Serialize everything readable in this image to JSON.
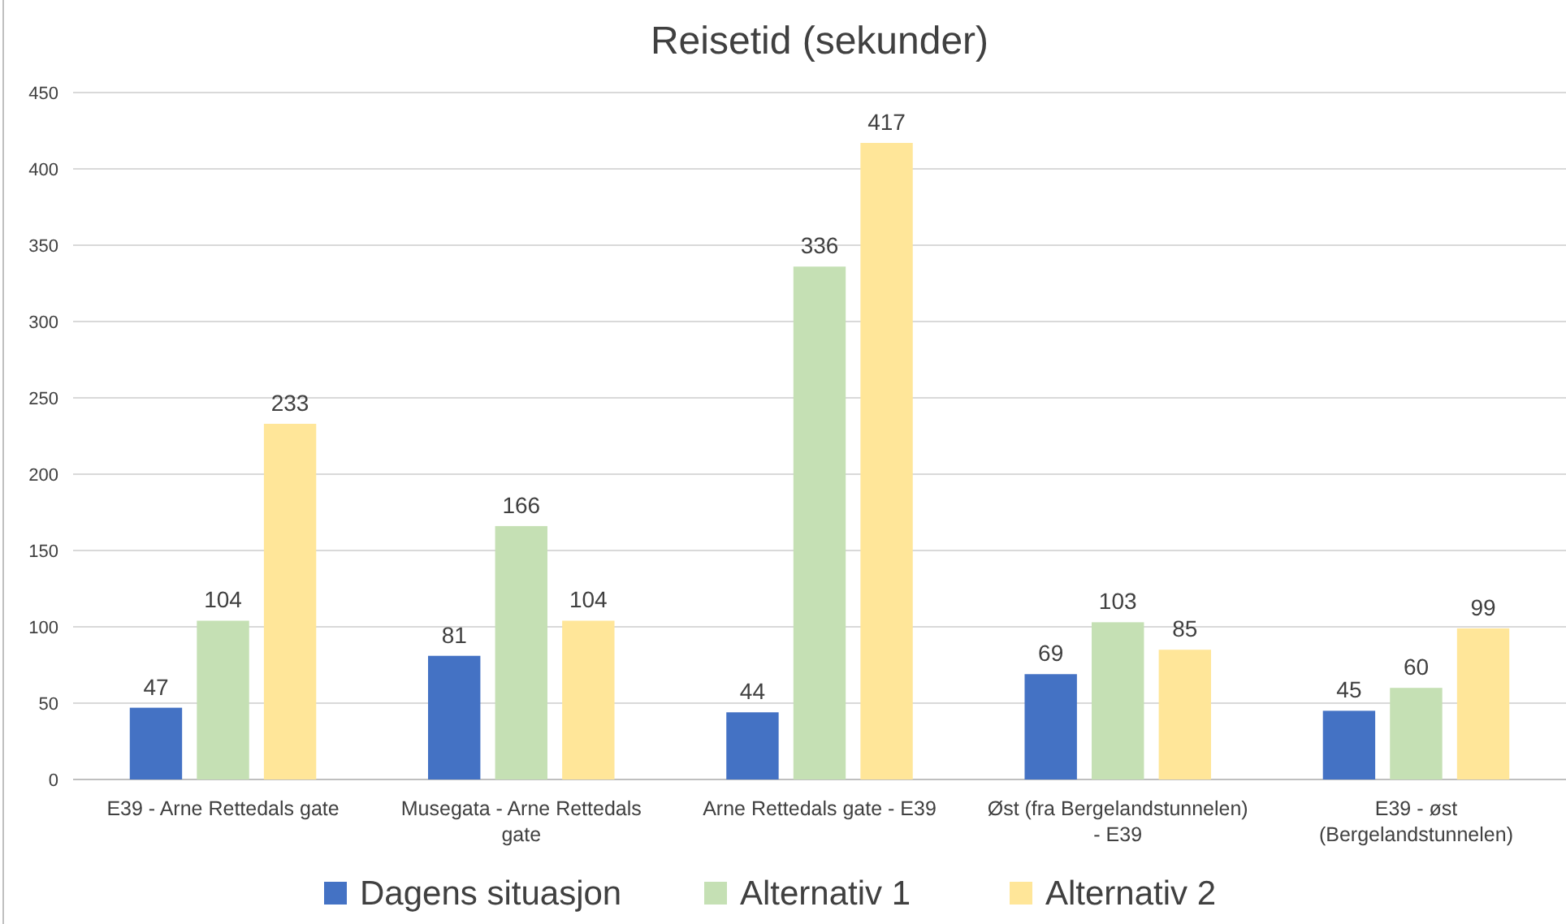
{
  "chart_data": {
    "type": "bar",
    "title": "Reisetid (sekunder)",
    "categories": [
      "E39 - Arne Rettedals gate",
      "Musegata - Arne Rettedals gate",
      "Arne Rettedals gate - E39",
      "Øst (fra Bergelandstunnelen) - E39",
      "E39 - øst (Bergelandstunnelen)"
    ],
    "series": [
      {
        "name": "Dagens situasjon",
        "color": "#4472c4",
        "values": [
          47,
          81,
          44,
          69,
          45
        ]
      },
      {
        "name": "Alternativ 1",
        "color": "#c5e0b4",
        "values": [
          104,
          166,
          336,
          103,
          60
        ]
      },
      {
        "name": "Alternativ 2",
        "color": "#ffe699",
        "values": [
          233,
          104,
          417,
          85,
          99
        ]
      }
    ],
    "ylim": [
      0,
      450
    ],
    "yticks": [
      0,
      50,
      100,
      150,
      200,
      250,
      300,
      350,
      400,
      450
    ],
    "grid": "y",
    "legend": "bottom",
    "data_labels": true
  }
}
